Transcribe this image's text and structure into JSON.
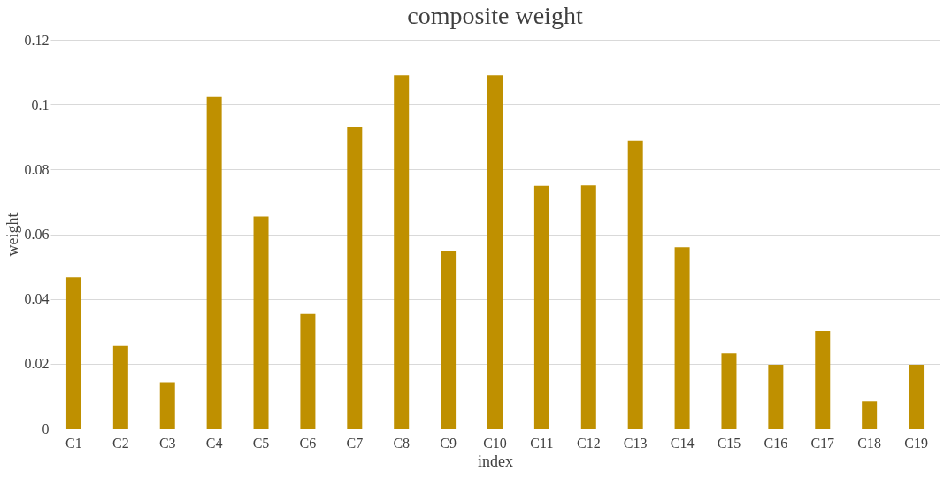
{
  "chart_data": {
    "type": "bar",
    "title": "composite weight",
    "xlabel": "index",
    "ylabel": "weight",
    "categories": [
      "C1",
      "C2",
      "C3",
      "C4",
      "C5",
      "C6",
      "C7",
      "C8",
      "C9",
      "C10",
      "C11",
      "C12",
      "C13",
      "C14",
      "C15",
      "C16",
      "C17",
      "C18",
      "C19"
    ],
    "values": [
      0.0467,
      0.0255,
      0.0141,
      0.1026,
      0.0655,
      0.0353,
      0.093,
      0.109,
      0.0547,
      0.109,
      0.075,
      0.0751,
      0.0889,
      0.056,
      0.0232,
      0.0197,
      0.0301,
      0.0084,
      0.0197
    ],
    "color": "#bf9000",
    "ylim": [
      0,
      0.12
    ],
    "yticks": [
      0,
      0.02,
      0.04,
      0.06,
      0.08,
      0.1,
      0.12
    ],
    "grid": "y"
  }
}
